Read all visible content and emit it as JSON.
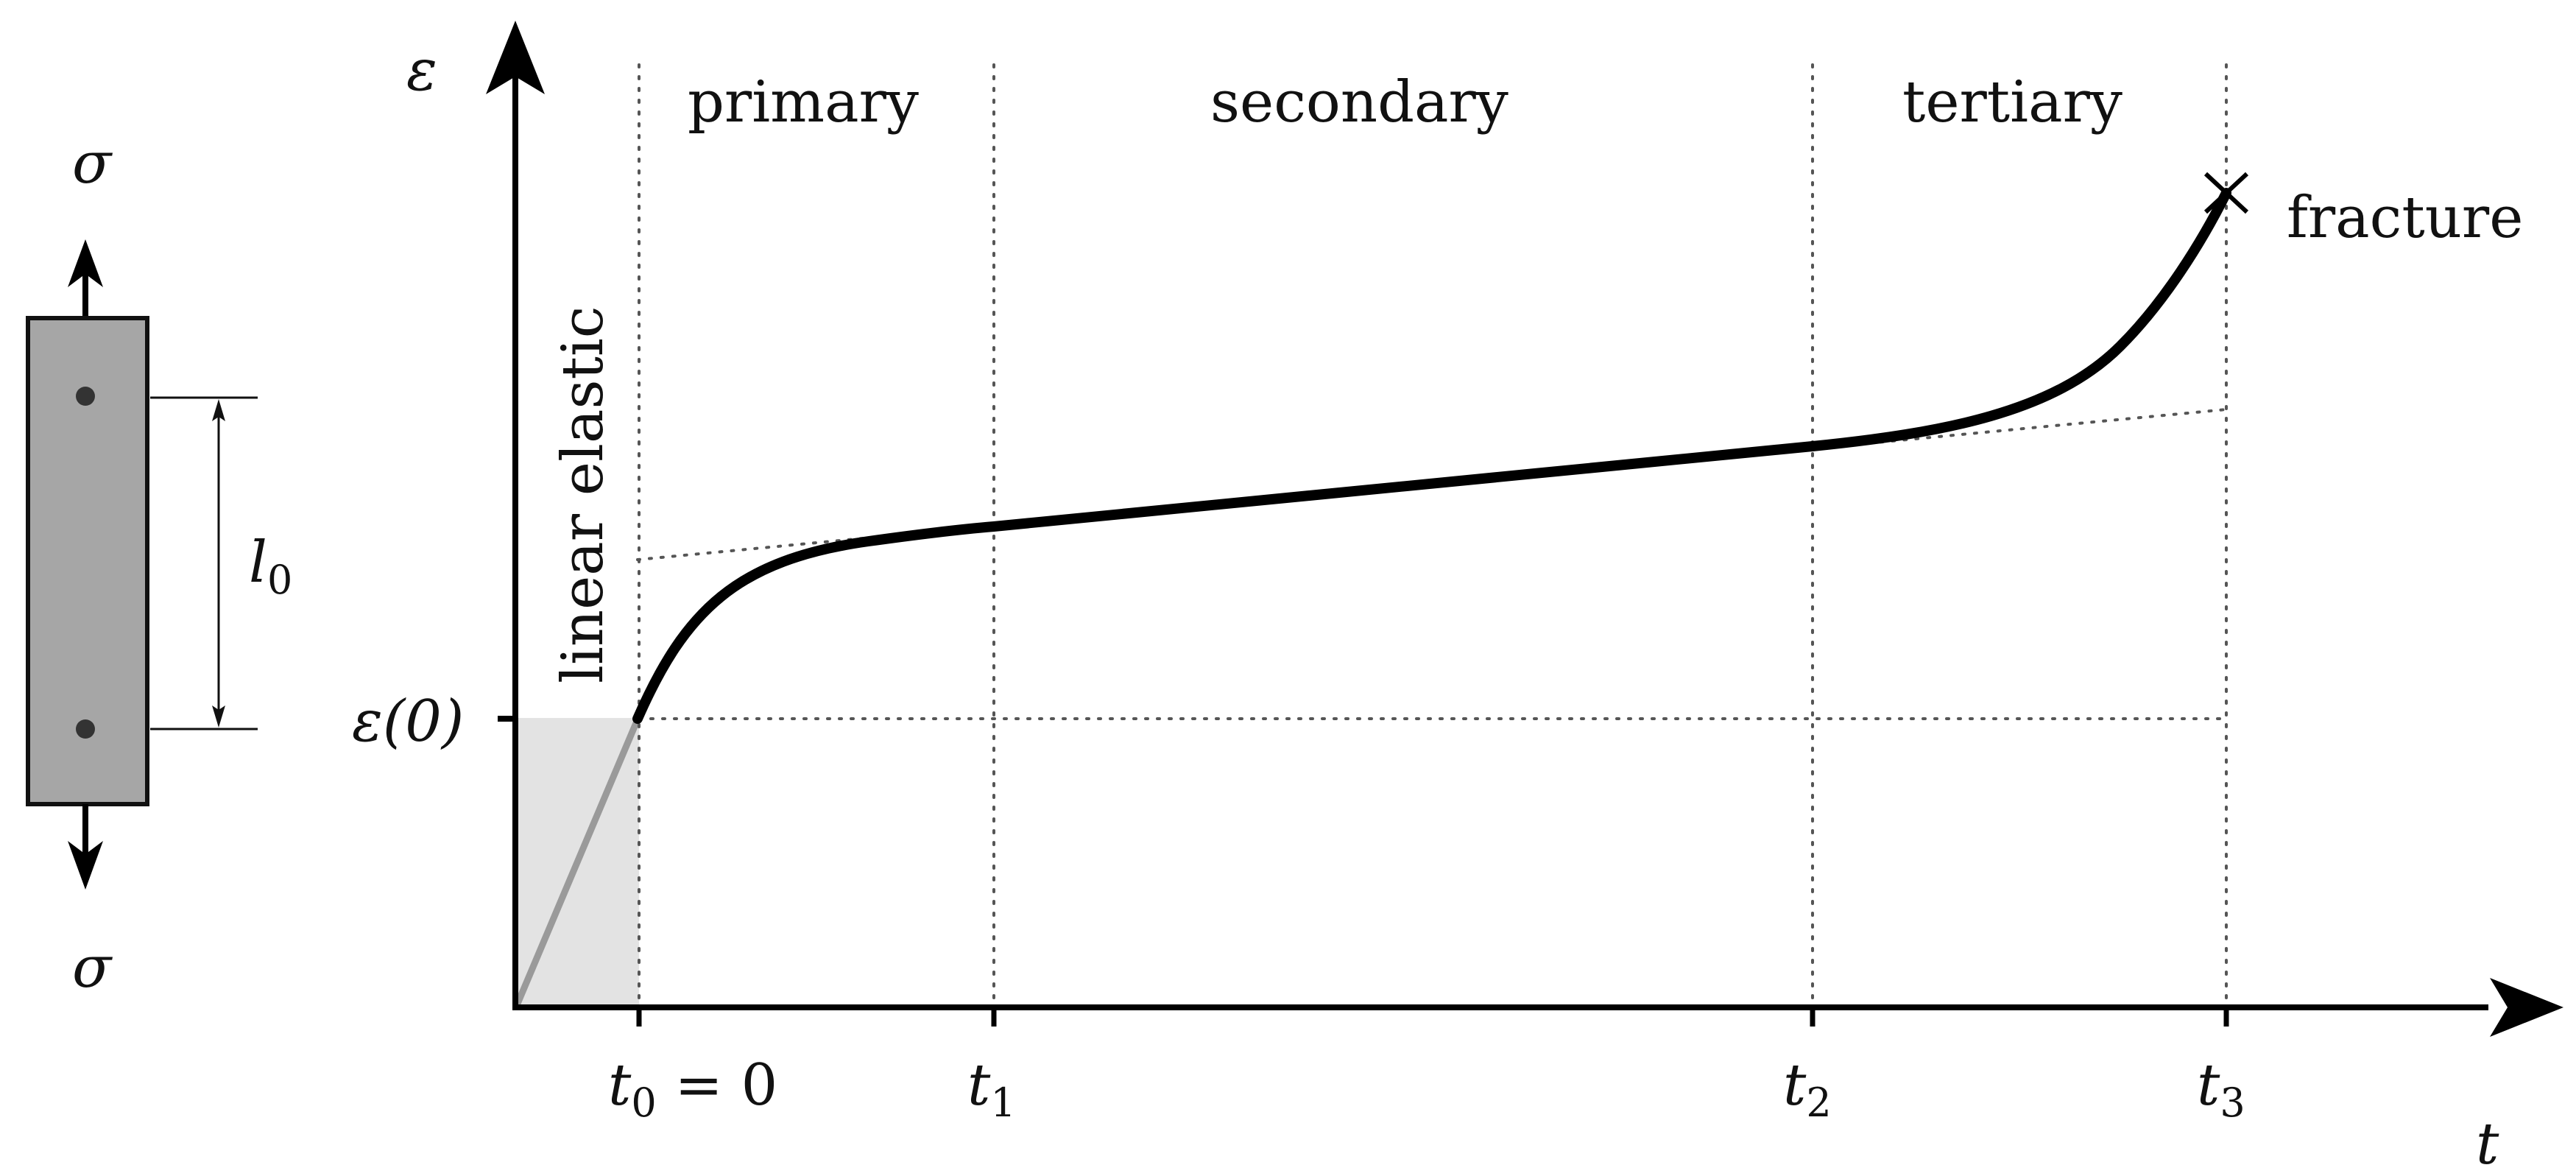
{
  "specimen": {
    "stress_top": "σ",
    "stress_bottom": "σ",
    "gauge_length": "l",
    "gauge_length_sub": "0"
  },
  "axes": {
    "y_label": "ε",
    "x_label": "t",
    "y_tick": "ε(0)"
  },
  "regions": {
    "primary": "primary",
    "secondary": "secondary",
    "tertiary": "tertiary",
    "elastic": "linear elastic"
  },
  "x_ticks": {
    "t0_main": "t",
    "t0_sub": "0",
    "t0_rest": " = 0",
    "t1_main": "t",
    "t1_sub": "1",
    "t2_main": "t",
    "t2_sub": "2",
    "t3_main": "t",
    "t3_sub": "3"
  },
  "annotations": {
    "fracture": "fracture"
  },
  "colors": {
    "curve": "#000000",
    "specimen_fill": "#a6a6a6",
    "elastic_region_fill": "#e3e3e3",
    "elastic_line": "#9a9a9a",
    "guide_lines": "#555555"
  }
}
